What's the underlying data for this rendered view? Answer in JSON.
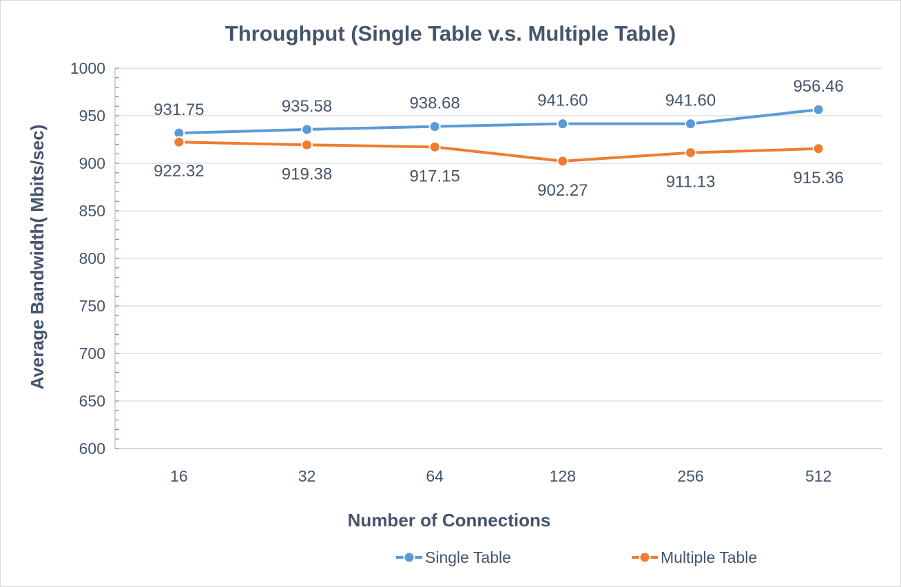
{
  "chart_data": {
    "type": "line",
    "title": "Throughput (Single Table v.s. Multiple Table)",
    "xlabel": "Number of Connections",
    "ylabel": "Average Bandwidth( Mbits/sec)",
    "categories": [
      "16",
      "32",
      "64",
      "128",
      "256",
      "512"
    ],
    "ylim": [
      600,
      1000
    ],
    "y_major_step": 50,
    "y_minor_step": 10,
    "y_ticks": [
      "600",
      "650",
      "700",
      "750",
      "800",
      "850",
      "900",
      "950",
      "1000"
    ],
    "grid": true,
    "legend_position": "bottom-right",
    "series": [
      {
        "name": "Single Table",
        "color": "#5b9bd5",
        "values": [
          931.75,
          935.58,
          938.68,
          941.6,
          941.6,
          956.46
        ],
        "labels": [
          "931.75",
          "935.58",
          "938.68",
          "941.60",
          "941.60",
          "956.46"
        ],
        "label_position": "above"
      },
      {
        "name": "Multiple Table",
        "color": "#ed7d31",
        "values": [
          922.32,
          919.38,
          917.15,
          902.27,
          911.13,
          915.36
        ],
        "labels": [
          "922.32",
          "919.38",
          "917.15",
          "902.27",
          "911.13",
          "915.36"
        ],
        "label_position": "below"
      }
    ]
  }
}
